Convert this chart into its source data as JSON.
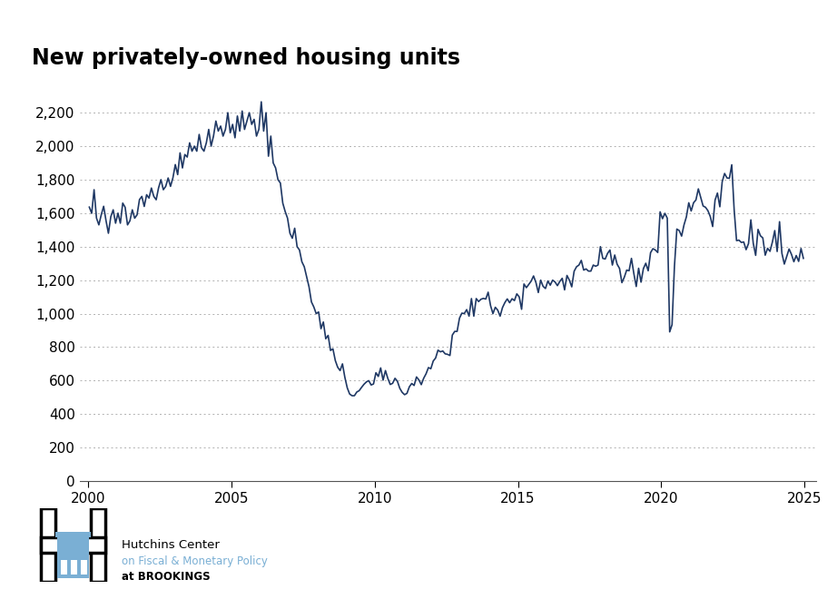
{
  "title": "New privately-owned housing units",
  "line_color": "#1f3864",
  "background_color": "#ffffff",
  "ylim": [
    0,
    2400
  ],
  "yticks": [
    0,
    200,
    400,
    600,
    800,
    1000,
    1200,
    1400,
    1600,
    1800,
    2000,
    2200
  ],
  "xlim_start": 1999.7,
  "xlim_end": 2025.4,
  "xticks": [
    2000,
    2005,
    2010,
    2015,
    2020,
    2025
  ],
  "title_fontsize": 17,
  "axis_fontsize": 11,
  "line_width": 1.2,
  "dates": [
    2000.042,
    2000.125,
    2000.208,
    2000.292,
    2000.375,
    2000.458,
    2000.542,
    2000.625,
    2000.708,
    2000.792,
    2000.875,
    2000.958,
    2001.042,
    2001.125,
    2001.208,
    2001.292,
    2001.375,
    2001.458,
    2001.542,
    2001.625,
    2001.708,
    2001.792,
    2001.875,
    2001.958,
    2002.042,
    2002.125,
    2002.208,
    2002.292,
    2002.375,
    2002.458,
    2002.542,
    2002.625,
    2002.708,
    2002.792,
    2002.875,
    2002.958,
    2003.042,
    2003.125,
    2003.208,
    2003.292,
    2003.375,
    2003.458,
    2003.542,
    2003.625,
    2003.708,
    2003.792,
    2003.875,
    2003.958,
    2004.042,
    2004.125,
    2004.208,
    2004.292,
    2004.375,
    2004.458,
    2004.542,
    2004.625,
    2004.708,
    2004.792,
    2004.875,
    2004.958,
    2005.042,
    2005.125,
    2005.208,
    2005.292,
    2005.375,
    2005.458,
    2005.542,
    2005.625,
    2005.708,
    2005.792,
    2005.875,
    2005.958,
    2006.042,
    2006.125,
    2006.208,
    2006.292,
    2006.375,
    2006.458,
    2006.542,
    2006.625,
    2006.708,
    2006.792,
    2006.875,
    2006.958,
    2007.042,
    2007.125,
    2007.208,
    2007.292,
    2007.375,
    2007.458,
    2007.542,
    2007.625,
    2007.708,
    2007.792,
    2007.875,
    2007.958,
    2008.042,
    2008.125,
    2008.208,
    2008.292,
    2008.375,
    2008.458,
    2008.542,
    2008.625,
    2008.708,
    2008.792,
    2008.875,
    2008.958,
    2009.042,
    2009.125,
    2009.208,
    2009.292,
    2009.375,
    2009.458,
    2009.542,
    2009.625,
    2009.708,
    2009.792,
    2009.875,
    2009.958,
    2010.042,
    2010.125,
    2010.208,
    2010.292,
    2010.375,
    2010.458,
    2010.542,
    2010.625,
    2010.708,
    2010.792,
    2010.875,
    2010.958,
    2011.042,
    2011.125,
    2011.208,
    2011.292,
    2011.375,
    2011.458,
    2011.542,
    2011.625,
    2011.708,
    2011.792,
    2011.875,
    2011.958,
    2012.042,
    2012.125,
    2012.208,
    2012.292,
    2012.375,
    2012.458,
    2012.542,
    2012.625,
    2012.708,
    2012.792,
    2012.875,
    2012.958,
    2013.042,
    2013.125,
    2013.208,
    2013.292,
    2013.375,
    2013.458,
    2013.542,
    2013.625,
    2013.708,
    2013.792,
    2013.875,
    2013.958,
    2014.042,
    2014.125,
    2014.208,
    2014.292,
    2014.375,
    2014.458,
    2014.542,
    2014.625,
    2014.708,
    2014.792,
    2014.875,
    2014.958,
    2015.042,
    2015.125,
    2015.208,
    2015.292,
    2015.375,
    2015.458,
    2015.542,
    2015.625,
    2015.708,
    2015.792,
    2015.875,
    2015.958,
    2016.042,
    2016.125,
    2016.208,
    2016.292,
    2016.375,
    2016.458,
    2016.542,
    2016.625,
    2016.708,
    2016.792,
    2016.875,
    2016.958,
    2017.042,
    2017.125,
    2017.208,
    2017.292,
    2017.375,
    2017.458,
    2017.542,
    2017.625,
    2017.708,
    2017.792,
    2017.875,
    2017.958,
    2018.042,
    2018.125,
    2018.208,
    2018.292,
    2018.375,
    2018.458,
    2018.542,
    2018.625,
    2018.708,
    2018.792,
    2018.875,
    2018.958,
    2019.042,
    2019.125,
    2019.208,
    2019.292,
    2019.375,
    2019.458,
    2019.542,
    2019.625,
    2019.708,
    2019.792,
    2019.875,
    2019.958,
    2020.042,
    2020.125,
    2020.208,
    2020.292,
    2020.375,
    2020.458,
    2020.542,
    2020.625,
    2020.708,
    2020.792,
    2020.875,
    2020.958,
    2021.042,
    2021.125,
    2021.208,
    2021.292,
    2021.375,
    2021.458,
    2021.542,
    2021.625,
    2021.708,
    2021.792,
    2021.875,
    2021.958,
    2022.042,
    2022.125,
    2022.208,
    2022.292,
    2022.375,
    2022.458,
    2022.542,
    2022.625,
    2022.708,
    2022.792,
    2022.875,
    2022.958,
    2023.042,
    2023.125,
    2023.208,
    2023.292,
    2023.375,
    2023.458,
    2023.542,
    2023.625,
    2023.708,
    2023.792,
    2023.875,
    2023.958,
    2024.042,
    2024.125,
    2024.208,
    2024.292,
    2024.375,
    2024.458,
    2024.542,
    2024.625,
    2024.708,
    2024.792,
    2024.875,
    2024.958
  ],
  "values": [
    1636,
    1599,
    1740,
    1571,
    1530,
    1590,
    1641,
    1555,
    1480,
    1579,
    1620,
    1540,
    1600,
    1540,
    1660,
    1635,
    1530,
    1554,
    1620,
    1570,
    1590,
    1681,
    1700,
    1640,
    1710,
    1690,
    1750,
    1700,
    1680,
    1751,
    1800,
    1740,
    1760,
    1810,
    1760,
    1810,
    1890,
    1830,
    1960,
    1870,
    1950,
    1935,
    2020,
    1970,
    2000,
    1970,
    2070,
    1990,
    1970,
    2020,
    2100,
    2000,
    2060,
    2150,
    2090,
    2120,
    2060,
    2100,
    2200,
    2080,
    2130,
    2050,
    2180,
    2090,
    2210,
    2100,
    2150,
    2200,
    2130,
    2160,
    2060,
    2100,
    2265,
    2090,
    2200,
    1940,
    2060,
    1900,
    1870,
    1800,
    1780,
    1660,
    1610,
    1570,
    1480,
    1450,
    1510,
    1400,
    1380,
    1310,
    1280,
    1220,
    1160,
    1070,
    1040,
    1000,
    1010,
    910,
    950,
    850,
    870,
    780,
    790,
    720,
    680,
    660,
    700,
    620,
    557,
    520,
    510,
    510,
    532,
    540,
    560,
    578,
    592,
    600,
    574,
    580,
    647,
    625,
    676,
    603,
    660,
    613,
    577,
    584,
    614,
    596,
    554,
    530,
    516,
    524,
    563,
    583,
    571,
    622,
    604,
    576,
    614,
    641,
    678,
    671,
    717,
    735,
    782,
    772,
    777,
    760,
    757,
    750,
    872,
    894,
    894,
    973,
    1003,
    1000,
    1024,
    985,
    1090,
    985,
    1090,
    1072,
    1086,
    1091,
    1087,
    1128,
    1048,
    1000,
    1038,
    1021,
    985,
    1036,
    1066,
    1088,
    1065,
    1089,
    1078,
    1118,
    1100,
    1026,
    1177,
    1155,
    1175,
    1194,
    1225,
    1186,
    1126,
    1200,
    1163,
    1150,
    1195,
    1170,
    1200,
    1189,
    1167,
    1192,
    1211,
    1142,
    1228,
    1200,
    1160,
    1253,
    1280,
    1290,
    1318,
    1260,
    1267,
    1254,
    1254,
    1290,
    1283,
    1290,
    1400,
    1330,
    1326,
    1360,
    1380,
    1290,
    1350,
    1295,
    1270,
    1185,
    1217,
    1260,
    1256,
    1330,
    1239,
    1162,
    1271,
    1188,
    1269,
    1301,
    1256,
    1364,
    1388,
    1380,
    1365,
    1608,
    1567,
    1599,
    1570,
    891,
    934,
    1282,
    1505,
    1496,
    1463,
    1530,
    1578,
    1662,
    1613,
    1662,
    1679,
    1745,
    1695,
    1643,
    1635,
    1615,
    1580,
    1520,
    1678,
    1720,
    1638,
    1788,
    1837,
    1810,
    1808,
    1889,
    1619,
    1436,
    1439,
    1425,
    1428,
    1382,
    1418,
    1560,
    1420,
    1348,
    1503,
    1465,
    1452,
    1349,
    1390,
    1372,
    1427,
    1496,
    1371,
    1549,
    1360,
    1296,
    1341,
    1386,
    1354,
    1310,
    1347,
    1312,
    1389,
    1330
  ],
  "logo_text_line1": "Hutchins Center",
  "logo_text_line2": "on Fiscal & Monetary Policy",
  "logo_text_line3": "at BROOKINGS",
  "logo_color1": "#000000",
  "logo_color2": "#7aafd4"
}
